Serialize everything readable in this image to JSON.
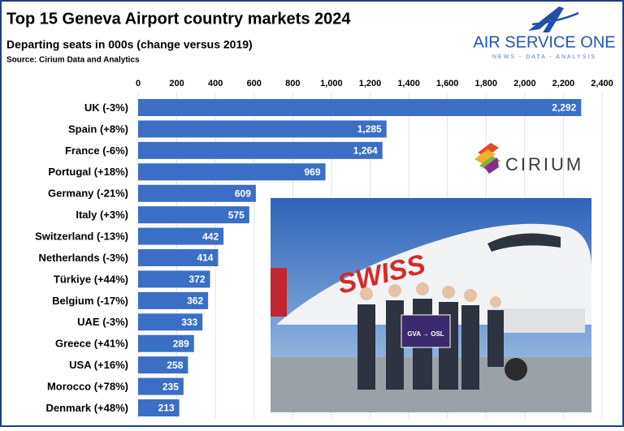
{
  "chart_data": {
    "type": "hbar",
    "title": "Top 15 Geneva Airport country markets 2024",
    "subtitle": "Departing seats in 000s (change versus 2019)",
    "source": "Source: Cirium Data and Analytics",
    "categories": [
      "UK (-3%)",
      "Spain (+8%)",
      "France (-6%)",
      "Portugal (+18%)",
      "Germany (-21%)",
      "Italy (+3%)",
      "Switzerland (-13%)",
      "Netherlands (-3%)",
      "Türkiye (+44%)",
      "Belgium (-17%)",
      "UAE (-3%)",
      "Greece (+41%)",
      "USA (+16%)",
      "Morocco (+78%)",
      "Denmark (+48%)"
    ],
    "values": [
      2292,
      1285,
      1264,
      969,
      609,
      575,
      442,
      414,
      372,
      362,
      333,
      289,
      258,
      235,
      213
    ],
    "value_labels": [
      "2,292",
      "1,285",
      "1,264",
      "969",
      "609",
      "575",
      "442",
      "414",
      "372",
      "362",
      "333",
      "289",
      "258",
      "235",
      "213"
    ],
    "color": "#3a6fc5",
    "xlim": [
      0,
      2400
    ],
    "xticks": [
      0,
      200,
      400,
      600,
      800,
      {
        "value": 1000,
        "label": "1,000"
      },
      {
        "value": 1200,
        "label": "1,200"
      },
      {
        "value": 1400,
        "label": "1,400"
      },
      {
        "value": 1600,
        "label": "1,600"
      },
      {
        "value": 1800,
        "label": "1,800"
      },
      {
        "value": 2000,
        "label": "2,000"
      },
      {
        "value": 2200,
        "label": "2,200"
      },
      {
        "value": 2400,
        "label": "2,400"
      }
    ],
    "grid": true,
    "annotations": [
      "AIR SERVICE ONE",
      "NEWS - DATA - ANALYSIS",
      "CIRIUM",
      "SWISS",
      "GVA → OSL"
    ]
  }
}
